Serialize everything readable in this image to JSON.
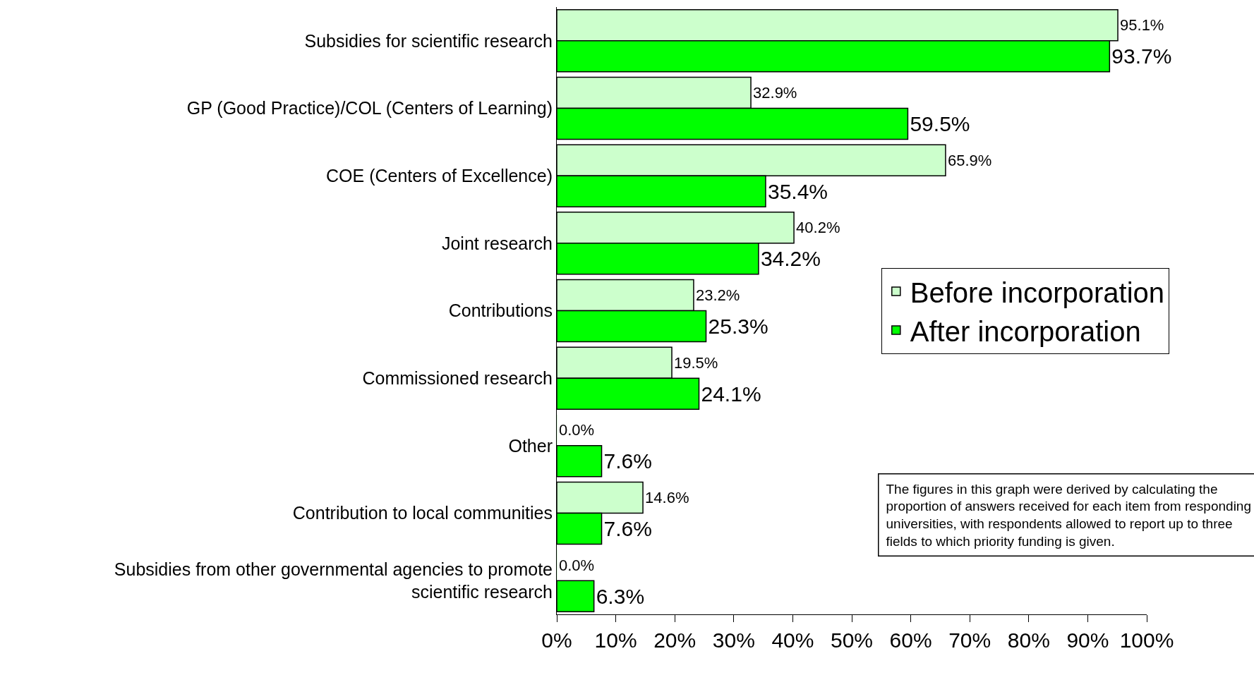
{
  "chart_data": {
    "type": "bar",
    "orientation": "horizontal",
    "categories": [
      "Subsidies for scientific research",
      "GP (Good Practice)/COL (Centers of Learning)",
      "COE (Centers of Excellence)",
      "Joint research",
      "Contributions",
      "Commissioned research",
      "Other",
      "Contribution to local communities",
      "Subsidies from other governmental agencies to promote scientific research"
    ],
    "series": [
      {
        "name": "Before incorporation",
        "color": "#ccffcc",
        "values": [
          95.1,
          32.9,
          65.9,
          40.2,
          23.2,
          19.5,
          0.0,
          14.6,
          0.0
        ],
        "value_labels": [
          "95.1%",
          "32.9%",
          "65.9%",
          "40.2%",
          "23.2%",
          "19.5%",
          "0.0%",
          "14.6%",
          "0.0%"
        ]
      },
      {
        "name": "After incorporation",
        "color": "#00ff00",
        "values": [
          93.7,
          59.5,
          35.4,
          34.2,
          25.3,
          24.1,
          7.6,
          7.6,
          6.3
        ],
        "value_labels": [
          "93.7%",
          "59.5%",
          "35.4%",
          "34.2%",
          "25.3%",
          "24.1%",
          "7.6%",
          "7.6%",
          "6.3%"
        ]
      }
    ],
    "xlim": [
      0,
      100
    ],
    "xticks": [
      {
        "value": 0,
        "label": "0%"
      },
      {
        "value": 10,
        "label": "10%"
      },
      {
        "value": 20,
        "label": "20%"
      },
      {
        "value": 30,
        "label": "30%"
      },
      {
        "value": 40,
        "label": "40%"
      },
      {
        "value": 50,
        "label": "50%"
      },
      {
        "value": 60,
        "label": "60%"
      },
      {
        "value": 70,
        "label": "70%"
      },
      {
        "value": 80,
        "label": "80%"
      },
      {
        "value": 90,
        "label": "90%"
      },
      {
        "value": 100,
        "label": "100%"
      }
    ],
    "legend": "right",
    "annotations": [
      "The figures in this graph were derived by calculating the proportion of answers received for each item from responding universities, with respondents allowed to report up to three fields to which priority funding is given."
    ]
  }
}
